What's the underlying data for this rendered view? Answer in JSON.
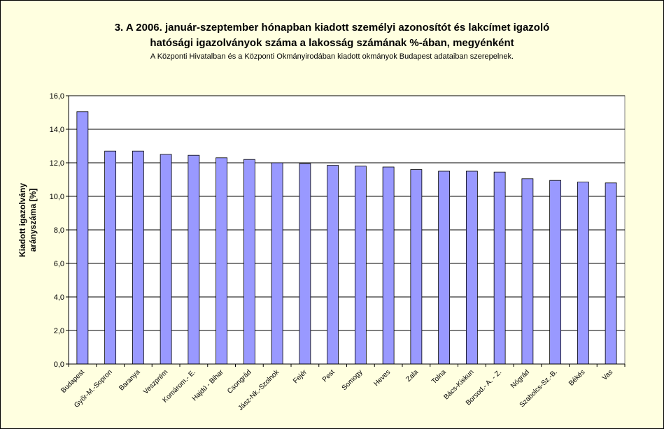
{
  "chart_data": {
    "type": "bar",
    "title": "3. A 2006. január-szeptember hónapban kiadott személyi azonosítót és lakcímet igazoló",
    "title_line2": "hatósági igazolványok száma a lakosság  számának %-ában, megyénként",
    "subtitle": "A Központi Hivatalban és a Központi Okmányirodában kiadott okmányok Budapest adataiban szerepelnek.",
    "ylabel_line1": "Kiadott igazolvány",
    "ylabel_line2": "arányszáma [%]",
    "xlabel": "",
    "ylim": [
      0,
      16
    ],
    "yticks": [
      "0,0",
      "2,0",
      "4,0",
      "6,0",
      "8,0",
      "10,0",
      "12,0",
      "14,0",
      "16,0"
    ],
    "grid": true,
    "legend": "none",
    "categories": [
      "Budapest",
      "Győr-M.-Sopron",
      "Baranya",
      "Veszprém",
      "Komárom.- E.",
      "Hajdú - Bihar",
      "Csongrád",
      "Jász-Nk.-Szolnok",
      "Fejér",
      "Pest",
      "Somogy",
      "Heves",
      "Zala",
      "Tolna",
      "Bács-Kiskun",
      "Borsod.- A. - Z.",
      "Nógrád",
      "Szabolcs-Sz.-B.",
      "Békés",
      "Vas"
    ],
    "values": [
      15.05,
      12.7,
      12.7,
      12.5,
      12.45,
      12.3,
      12.2,
      12.0,
      11.95,
      11.85,
      11.8,
      11.75,
      11.6,
      11.5,
      11.5,
      11.45,
      11.05,
      10.95,
      10.85,
      10.8
    ],
    "colors": {
      "bar": "#9999FF",
      "bar_stroke": "#000000",
      "plot_bg": "#FFFFFF",
      "page_bg": "#FFFFE0",
      "grid": "#000000"
    }
  }
}
